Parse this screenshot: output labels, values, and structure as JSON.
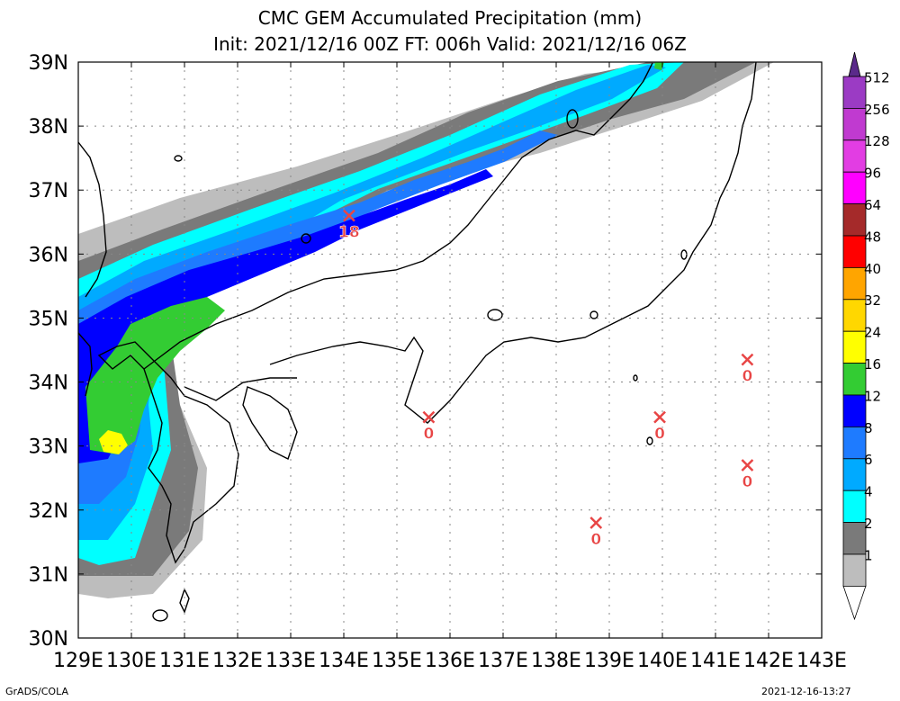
{
  "title_line1": "CMC GEM Accumulated Precipitation (mm)",
  "title_line2": "Init: 2021/12/16 00Z  FT: 006h  Valid: 2021/12/16 06Z",
  "footer_left": "GrADS/COLA",
  "footer_right": "2021-12-16-13:27",
  "map": {
    "lon_range": [
      129,
      143
    ],
    "lat_range": [
      30,
      39
    ],
    "lon_labels": [
      "129E",
      "130E",
      "131E",
      "132E",
      "133E",
      "134E",
      "135E",
      "136E",
      "137E",
      "138E",
      "139E",
      "140E",
      "141E",
      "142E",
      "143E"
    ],
    "lat_labels": [
      "39N",
      "38N",
      "37N",
      "36N",
      "35N",
      "34N",
      "33N",
      "32N",
      "31N",
      "30N"
    ],
    "grid": "dotted"
  },
  "colorbar": {
    "labels": [
      "512",
      "256",
      "128",
      "96",
      "64",
      "48",
      "40",
      "32",
      "24",
      "16",
      "12",
      "8",
      "6",
      "4",
      "2",
      "1"
    ],
    "colors": [
      "#9b3bc4",
      "#c03ad0",
      "#e23de3",
      "#ff00ff",
      "#a52a2a",
      "#ff0000",
      "#ffa500",
      "#ffd700",
      "#ffff00",
      "#33cc33",
      "#0000ff",
      "#1e7bff",
      "#00aaff",
      "#00ffff",
      "#7a7a7a",
      "#bdbdbd"
    ]
  },
  "stations": [
    {
      "lon": 134.1,
      "lat": 36.6,
      "value": "18"
    },
    {
      "lon": 135.6,
      "lat": 33.45,
      "value": "0"
    },
    {
      "lon": 139.95,
      "lat": 33.45,
      "value": "0"
    },
    {
      "lon": 141.6,
      "lat": 34.35,
      "value": "0"
    },
    {
      "lon": 141.6,
      "lat": 32.7,
      "value": "0"
    },
    {
      "lon": 138.75,
      "lat": 31.8,
      "value": "0"
    }
  ]
}
